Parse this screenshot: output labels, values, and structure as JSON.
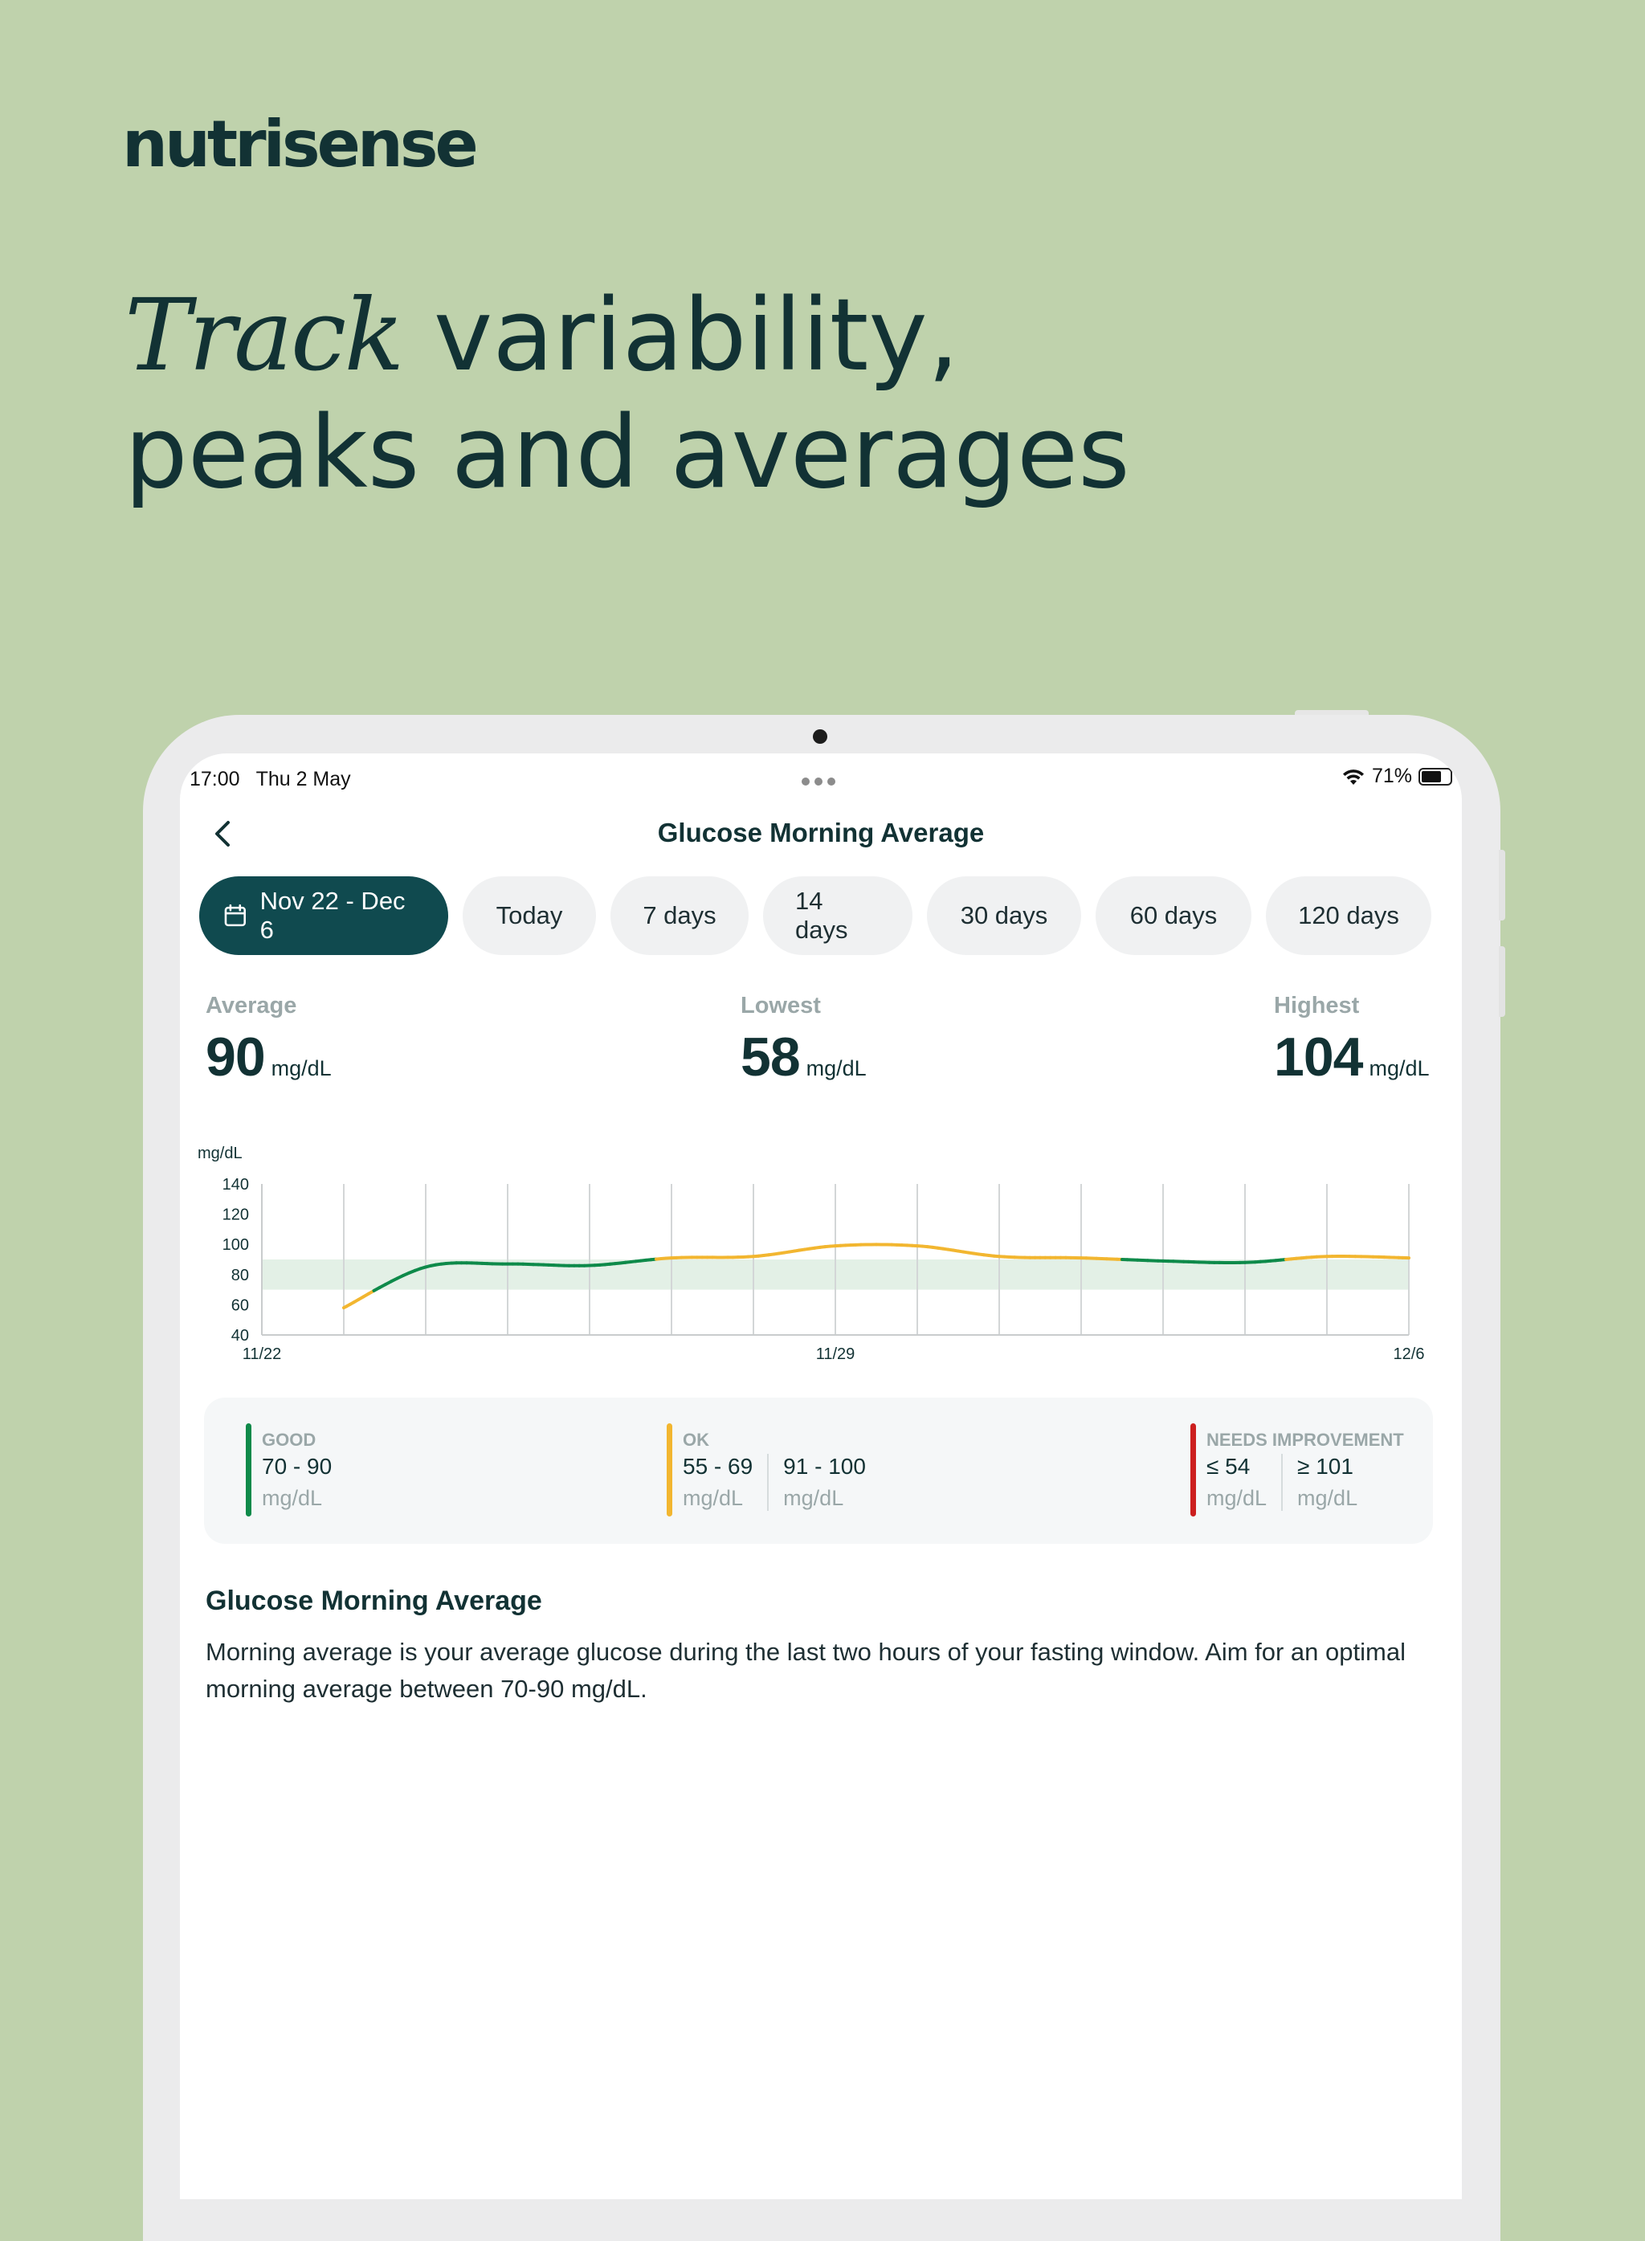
{
  "brand": {
    "logo": "nutrisense"
  },
  "headline": {
    "italic": "Track",
    "line1_rest": " variability,",
    "line2": "peaks and averages"
  },
  "status_bar": {
    "time": "17:00",
    "date": "Thu 2 May",
    "battery": "71%",
    "battery_level": 0.71
  },
  "screen": {
    "title": "Glucose Morning Average",
    "date_range": "Nov 22 - Dec 6",
    "chips": [
      "Today",
      "7 days",
      "14 days",
      "30 days",
      "60 days",
      "120 days"
    ]
  },
  "stats": {
    "average": {
      "label": "Average",
      "value": "90",
      "unit": "mg/dL"
    },
    "lowest": {
      "label": "Lowest",
      "value": "58",
      "unit": "mg/dL"
    },
    "highest": {
      "label": "Highest",
      "value": "104",
      "unit": "mg/dL"
    }
  },
  "chart_data": {
    "type": "line",
    "ylabel": "mg/dL",
    "y_ticks": [
      140,
      120,
      100,
      80,
      60,
      40
    ],
    "ylim": [
      40,
      140
    ],
    "x_tick_labels": [
      "11/22",
      "11/29",
      "12/6"
    ],
    "target_band": [
      70,
      90
    ],
    "grid": "vertical",
    "x": [
      "11/23",
      "11/24",
      "11/25",
      "11/26",
      "11/27",
      "11/28",
      "11/29",
      "11/30",
      "12/1",
      "12/2",
      "12/3",
      "12/4",
      "12/5",
      "12/6"
    ],
    "values": [
      58,
      85,
      87,
      86,
      91,
      92,
      99,
      99,
      92,
      91,
      89,
      88,
      92,
      91
    ],
    "colors": {
      "good": "#0e8a4a",
      "ok": "#f2b630",
      "needs_improvement": "#cc1f1f",
      "band": "#e3f0e6"
    }
  },
  "legend": {
    "good": {
      "label": "GOOD",
      "ranges": [
        "70 - 90"
      ],
      "unit": "mg/dL"
    },
    "ok": {
      "label": "OK",
      "ranges": [
        "55 - 69",
        "91 - 100"
      ],
      "unit": "mg/dL"
    },
    "needs": {
      "label": "NEEDS IMPROVEMENT",
      "ranges": [
        "≤ 54",
        "≥ 101"
      ],
      "unit": "mg/dL"
    }
  },
  "description": {
    "title": "Glucose Morning Average",
    "body": "Morning average is your average glucose during the last two hours of your fasting window. Aim for an optimal morning average between 70-90 mg/dL."
  }
}
